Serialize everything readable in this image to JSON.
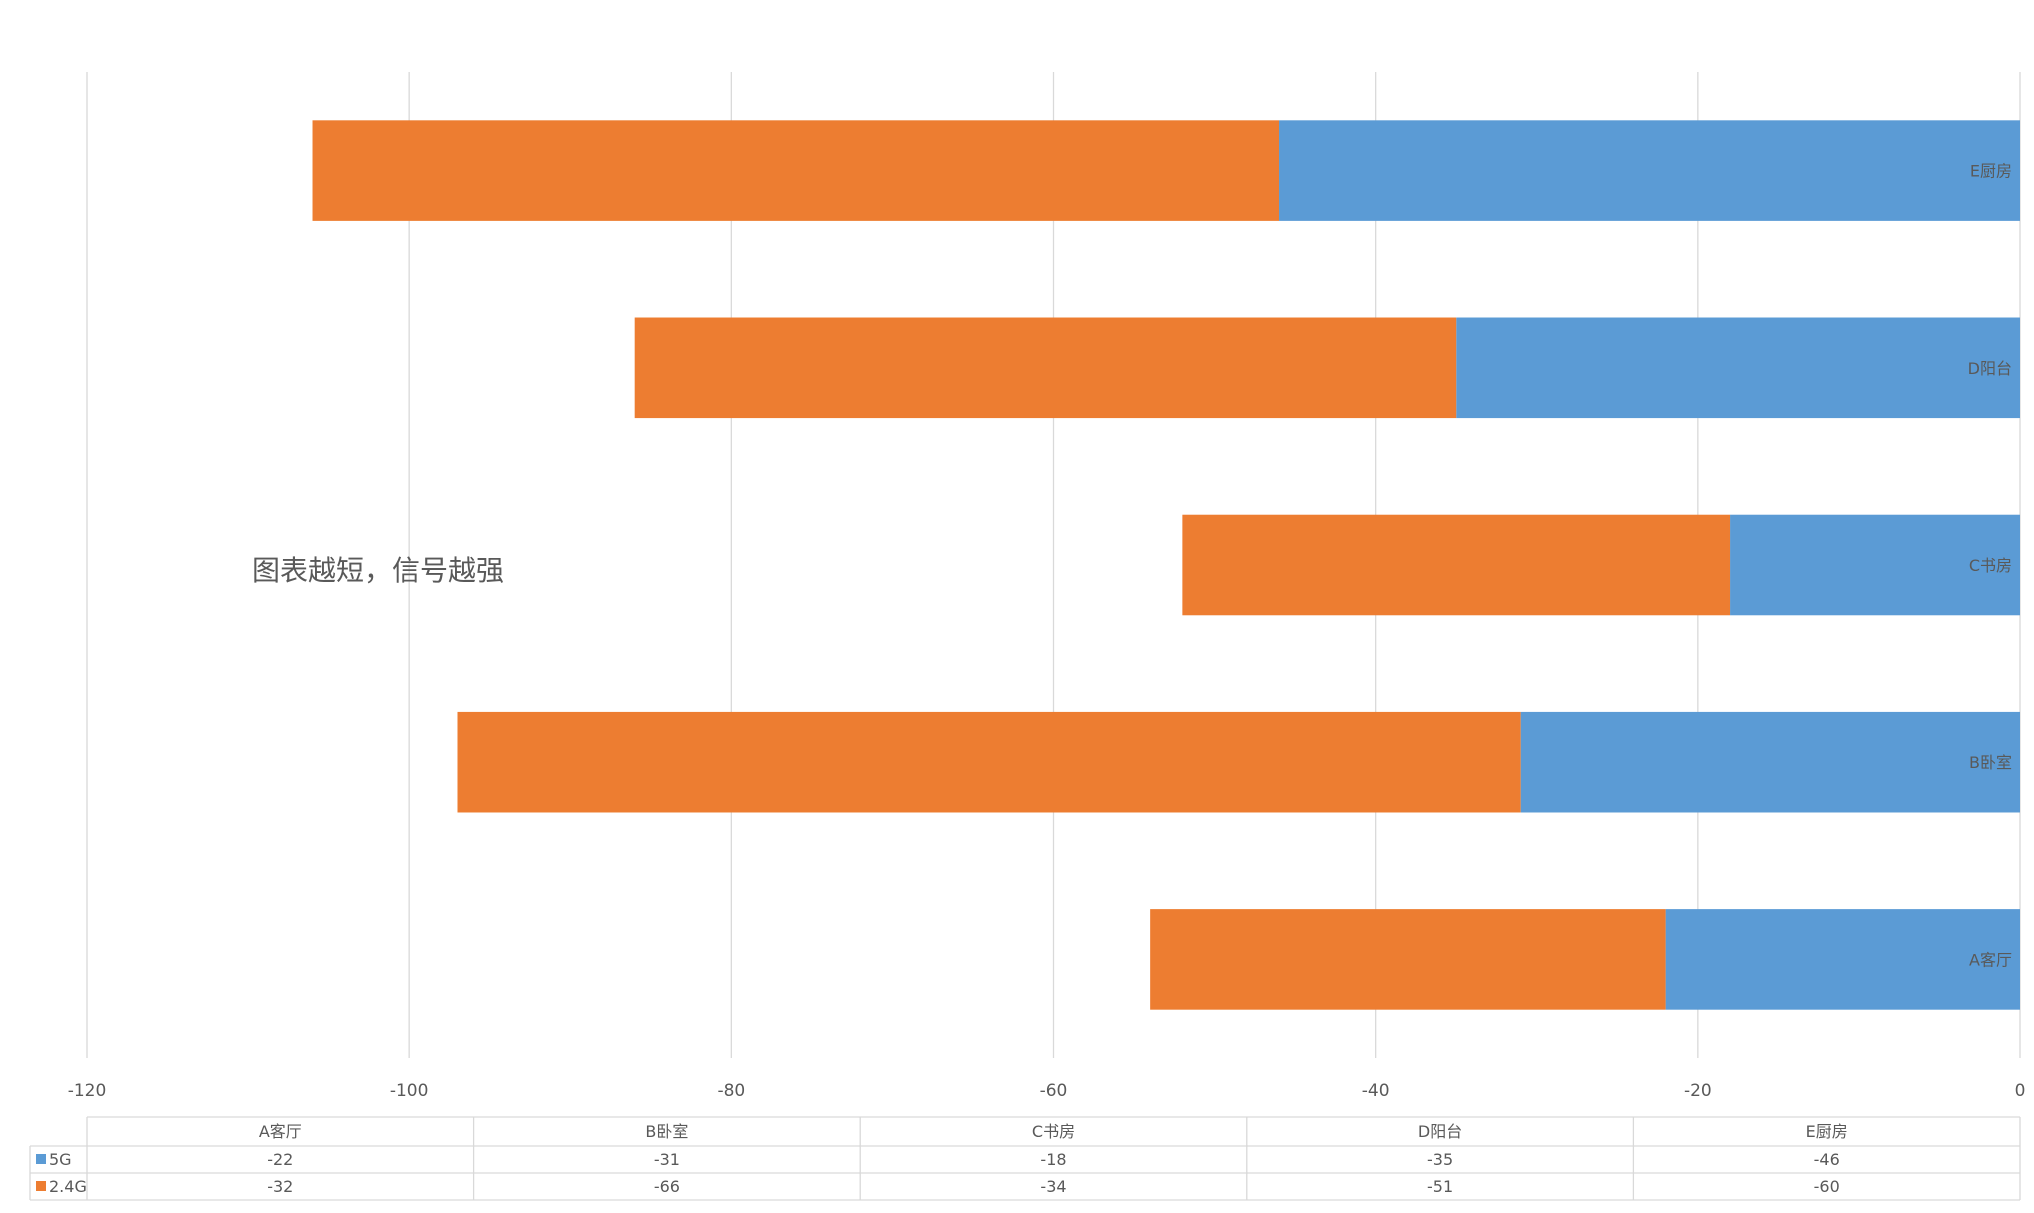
{
  "colors": {
    "5G": "#5b9bd5",
    "2.4G": "#ed7d31",
    "grid": "#d9d9d9",
    "text": "#595959"
  },
  "chart_data": {
    "type": "bar",
    "orientation": "horizontal",
    "stacked": true,
    "categories": [
      "A客厅",
      "B卧室",
      "C书房",
      "D阳台",
      "E厨房"
    ],
    "series": [
      {
        "name": "5G",
        "values": [
          -22,
          -31,
          -18,
          -35,
          -46
        ]
      },
      {
        "name": "2.4G",
        "values": [
          -32,
          -66,
          -34,
          -51,
          -60
        ]
      }
    ],
    "xlim": [
      -120,
      0
    ],
    "x_ticks": [
      -120,
      -100,
      -80,
      -60,
      -40,
      -20,
      0
    ],
    "x_tick_labels": [
      "-120",
      "-100",
      "-80",
      "-60",
      "-40",
      "-20",
      "0"
    ],
    "grid": true,
    "annotation": "图表越短，信号越强",
    "data_table": true,
    "legend": "data-table-left",
    "title": "",
    "xlabel": "",
    "ylabel": ""
  }
}
